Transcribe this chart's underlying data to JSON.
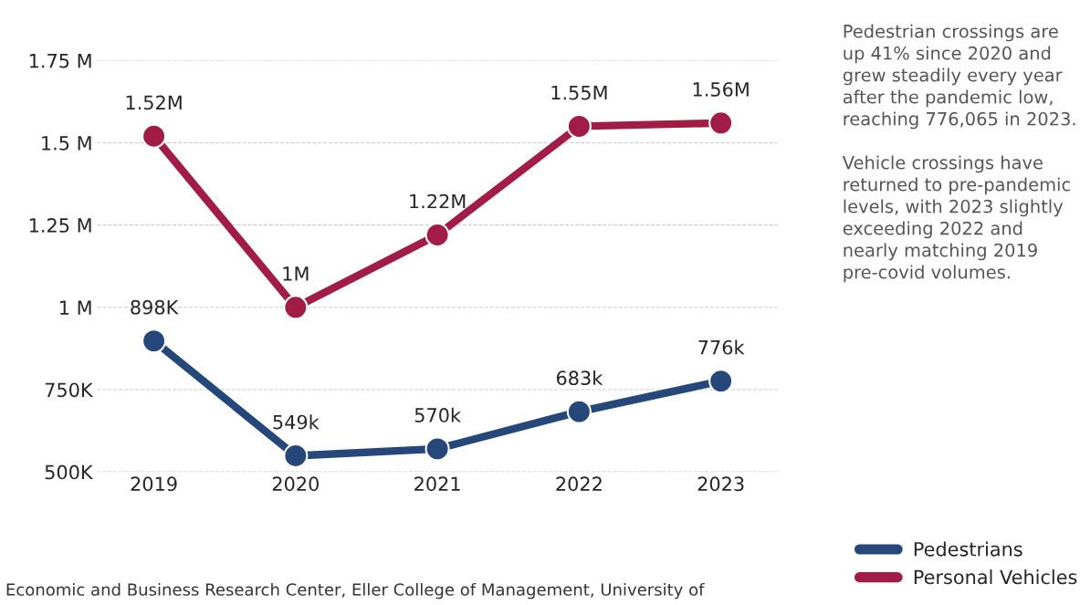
{
  "chart_data": {
    "type": "line",
    "categories": [
      "2019",
      "2020",
      "2021",
      "2022",
      "2023"
    ],
    "series": [
      {
        "name": "Pedestrians",
        "color": "#26477a",
        "values": [
          898000,
          549000,
          570000,
          683000,
          776000
        ],
        "value_labels": [
          "898K",
          "549k",
          "570k",
          "683k",
          "776k"
        ]
      },
      {
        "name": "Personal Vehicles",
        "color": "#a11d48",
        "values": [
          1520000,
          1000000,
          1220000,
          1550000,
          1560000
        ],
        "value_labels": [
          "1.52M",
          "1M",
          "1.22M",
          "1.55M",
          "1.56M"
        ]
      }
    ],
    "ylim": [
      500000,
      1750000
    ],
    "yticks": [
      {
        "value": 500000,
        "label": "500K"
      },
      {
        "value": 750000,
        "label": "750K"
      },
      {
        "value": 1000000,
        "label": "1 M"
      },
      {
        "value": 1250000,
        "label": "1.25 M"
      },
      {
        "value": 1500000,
        "label": "1.5 M"
      },
      {
        "value": 1750000,
        "label": "1.75 M"
      }
    ],
    "grid": "y",
    "marker": "circle",
    "line_style": "solid",
    "legend": "right",
    "annotations": [
      "Pedestrian crossings are up 41% since 2020 and grew steadily every year after the pandemic low, reaching 776,065 in 2023.\n\nVehicle crossings have returned to pre-pandemic levels, with 2023 slightly exceeding 2022 and nearly matching 2019 pre-covid volumes.",
      "Economic and Business Research Center, Eller College of Management, University of"
    ]
  }
}
